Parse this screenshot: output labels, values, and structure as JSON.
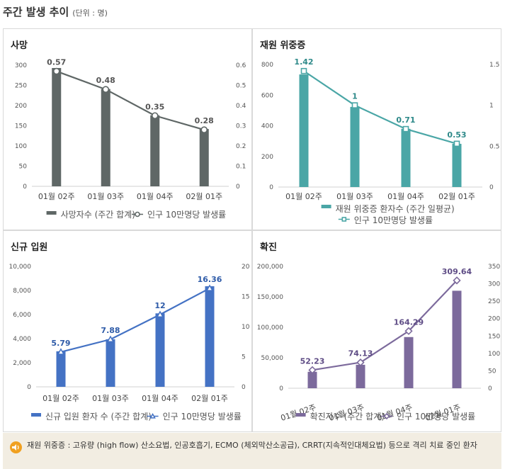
{
  "header": {
    "title": "주간 발생 추이",
    "unit": "(단위 : 명)"
  },
  "note": {
    "text": "재원 위중증 : 고유량 (high flow) 산소요법, 인공호흡기, ECMO (체외막산소공급), CRRT(지속적인대체요법) 등으로 격리 치료 중인 환자"
  },
  "chart_data": [
    {
      "id": "deaths",
      "type": "bar+line",
      "title": "사망",
      "categories": [
        "01월 02주",
        "01월 03주",
        "01월 04주",
        "02월 01주"
      ],
      "series": [
        {
          "name": "사망자수 (주간 합계)",
          "kind": "bar",
          "axis": "left",
          "values": [
            293,
            241,
            176,
            142
          ]
        },
        {
          "name": "인구 10만명당 발생률",
          "kind": "line",
          "axis": "right",
          "values": [
            0.57,
            0.48,
            0.35,
            0.28
          ],
          "labels": [
            "0.57",
            "0.48",
            "0.35",
            "0.28"
          ]
        }
      ],
      "left_axis": {
        "min": 0,
        "max": 300,
        "ticks": [
          "0",
          "50",
          "100",
          "150",
          "200",
          "250",
          "300"
        ]
      },
      "right_axis": {
        "min": 0,
        "max": 0.6,
        "ticks": [
          "0",
          "0.1",
          "0.2",
          "0.3",
          "0.4",
          "0.5",
          "0.6"
        ]
      },
      "colors": {
        "bar": "#5f6766",
        "line": "#5f6766",
        "label": "#555555",
        "marker_fill": "#ffffff"
      },
      "marker": "circle",
      "legend_layout": "row"
    },
    {
      "id": "critical",
      "type": "bar+line",
      "title": "재원 위중증",
      "categories": [
        "01월 02주",
        "01월 03주",
        "01월 04주",
        "02월 01주"
      ],
      "series": [
        {
          "name": "재원 위중증 환자수 (주간 일평균)",
          "kind": "bar",
          "axis": "left",
          "values": [
            735,
            523,
            380,
            282
          ]
        },
        {
          "name": "인구 10만명당 발생률",
          "kind": "line",
          "axis": "right",
          "values": [
            1.42,
            1.0,
            0.71,
            0.53
          ],
          "labels": [
            "1.42",
            "1",
            "0.71",
            "0.53"
          ]
        }
      ],
      "left_axis": {
        "min": 0,
        "max": 800,
        "ticks": [
          "0",
          "200",
          "400",
          "600",
          "800"
        ]
      },
      "right_axis": {
        "min": 0,
        "max": 1.5,
        "ticks": [
          "0",
          "0.5",
          "1",
          "1.5"
        ]
      },
      "colors": {
        "bar": "#4aa6a6",
        "line": "#4aa6a6",
        "label": "#2f8a8a",
        "marker_fill": "#ffffff"
      },
      "marker": "square",
      "legend_layout": "stacked"
    },
    {
      "id": "admissions",
      "type": "bar+line",
      "title": "신규 입원",
      "categories": [
        "01월 02주",
        "01월 03주",
        "01월 04주",
        "02월 01주"
      ],
      "series": [
        {
          "name": "신규 입원 환자 수 (주간 합계)",
          "kind": "bar",
          "axis": "left",
          "values": [
            2950,
            3950,
            6100,
            8350
          ]
        },
        {
          "name": "인구 10만명당 발생률",
          "kind": "line",
          "axis": "right",
          "values": [
            5.79,
            7.88,
            12,
            16.36
          ],
          "labels": [
            "5.79",
            "7.88",
            "12",
            "16.36"
          ]
        }
      ],
      "left_axis": {
        "min": 0,
        "max": 10000,
        "ticks": [
          "0",
          "2,000",
          "4,000",
          "6,000",
          "8,000",
          "10,000"
        ]
      },
      "right_axis": {
        "min": 0,
        "max": 20,
        "ticks": [
          "0",
          "5",
          "10",
          "15",
          "20"
        ]
      },
      "colors": {
        "bar": "#4472c4",
        "line": "#4472c4",
        "label": "#2e5ba8",
        "marker_fill": "#ffffff"
      },
      "marker": "triangle",
      "legend_layout": "row"
    },
    {
      "id": "confirmed",
      "type": "bar+line",
      "title": "확진",
      "categories": [
        "01월 02주",
        "01월 03주",
        "01월 04주",
        "02월 01주"
      ],
      "series": [
        {
          "name": "확진자수 (주간 합계)",
          "kind": "bar",
          "axis": "left",
          "values": [
            27000,
            38500,
            84000,
            160000
          ]
        },
        {
          "name": "인구 10만명당 발생률",
          "kind": "line",
          "axis": "right",
          "values": [
            52.23,
            74.13,
            164.29,
            309.64
          ],
          "labels": [
            "52.23",
            "74.13",
            "164.29",
            "309.64"
          ]
        }
      ],
      "left_axis": {
        "min": 0,
        "max": 200000,
        "ticks": [
          "0",
          "50,000",
          "100,000",
          "150,000",
          "200,000"
        ]
      },
      "right_axis": {
        "min": 0,
        "max": 350,
        "ticks": [
          "0",
          "50",
          "100",
          "150",
          "200",
          "250",
          "300",
          "350"
        ]
      },
      "colors": {
        "bar": "#7c6a9c",
        "line": "#7c6a9c",
        "label": "#5f4d86",
        "marker_fill": "#ffffff"
      },
      "marker": "diamond",
      "rotate_categories": true,
      "legend_layout": "row"
    }
  ]
}
